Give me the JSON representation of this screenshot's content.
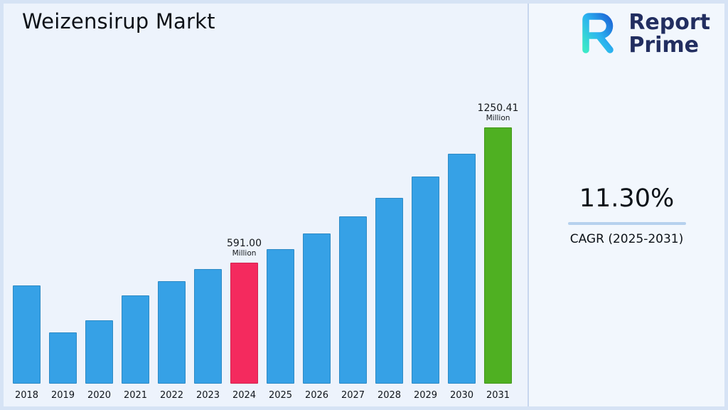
{
  "page": {
    "title": "Weizensirup Markt"
  },
  "logo": {
    "line1": "Report",
    "line2": "Prime"
  },
  "stats": {
    "cagr_value": "11.30%",
    "cagr_label": "CAGR (2025-2031)"
  },
  "chart_data": {
    "type": "bar",
    "title": "Weizensirup Markt",
    "categories": [
      "2018",
      "2019",
      "2020",
      "2021",
      "2022",
      "2023",
      "2024",
      "2025",
      "2026",
      "2027",
      "2028",
      "2029",
      "2030",
      "2031"
    ],
    "values": [
      480,
      250,
      310,
      430,
      500,
      560,
      591,
      657.8,
      732.1,
      814.8,
      906.9,
      1009.4,
      1123.4,
      1250.41
    ],
    "unit": "Million",
    "data_labels": {
      "2024": "591.00",
      "2031": "1250.41"
    },
    "colors": {
      "default": "#36a1e6",
      "2024": "#f42a5e",
      "2031": "#4fb022"
    },
    "ylim": [
      0,
      1300
    ],
    "grid": false,
    "legend": false,
    "xlabel": "",
    "ylabel": ""
  }
}
